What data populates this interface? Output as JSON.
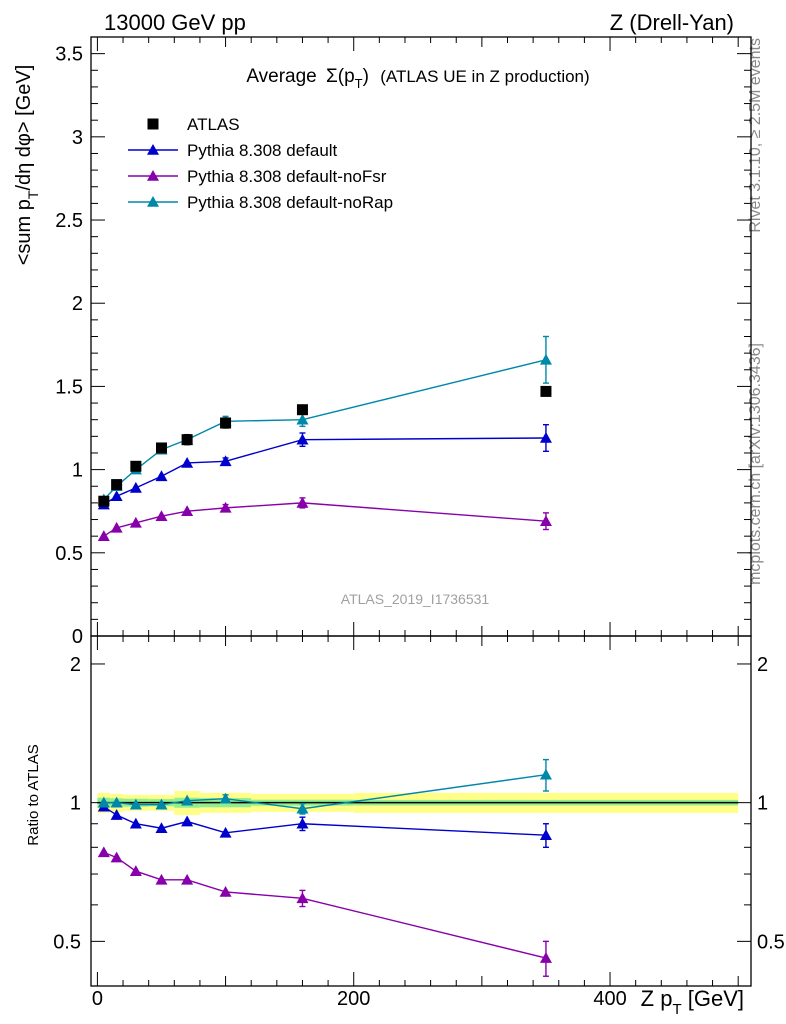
{
  "header": {
    "left": "13000 GeV pp",
    "right": "Z (Drell-Yan)"
  },
  "side_text": {
    "top": "Rivet 3.1.10, ≥ 2.5M events",
    "bottom": "mcplots.cern.ch [arXiv:1306.3436]"
  },
  "watermark": "ATLAS_2019_I1736531",
  "colors": {
    "atlas": "#000000",
    "default": "#0000cc",
    "noFsr": "#8800aa",
    "noRap": "#0088aa",
    "band_inner": "#90ee90",
    "band_outer": "#ffff88"
  },
  "chart_data": [
    {
      "type": "scatter",
      "panel": "main",
      "title_main": "Average",
      "title_sigma": "Σ(p",
      "title_sub": "T",
      "title_close": ")",
      "title_rest": "(ATLAS UE in Z production)",
      "ylabel": "<sum p_T/dη dφ> [GeV]",
      "ylabel_a": "<sum p",
      "ylabel_sub": "T",
      "ylabel_b": "/dη dφ> [GeV]",
      "xlim": [
        -5,
        510
      ],
      "ylim": [
        0,
        3.6
      ],
      "yticks": [
        0,
        0.5,
        1,
        1.5,
        2,
        2.5,
        3,
        3.5
      ],
      "ytick_labels": [
        "0",
        "0.5",
        "1",
        "1.5",
        "2",
        "2.5",
        "3",
        "3.5"
      ],
      "legend_position": "top-left",
      "x": [
        5,
        15,
        30,
        50,
        70,
        100,
        160,
        350
      ],
      "series": [
        {
          "name": "ATLAS",
          "key": "atlas",
          "marker": "square",
          "values": [
            0.81,
            0.91,
            1.02,
            1.13,
            1.18,
            1.28,
            1.36,
            1.47
          ],
          "err": [
            0.02,
            0.02,
            0.02,
            0.02,
            0.03,
            0.03,
            0.02,
            0.02
          ]
        },
        {
          "name": "Pythia 8.308 default",
          "key": "default",
          "marker": "triangle",
          "values": [
            0.79,
            0.84,
            0.89,
            0.96,
            1.04,
            1.05,
            1.18,
            1.19
          ],
          "err": [
            0.01,
            0.01,
            0.01,
            0.01,
            0.01,
            0.02,
            0.04,
            0.08
          ]
        },
        {
          "name": "Pythia 8.308 default-noFsr",
          "key": "noFsr",
          "marker": "triangle",
          "values": [
            0.6,
            0.65,
            0.68,
            0.72,
            0.75,
            0.77,
            0.8,
            0.69
          ],
          "err": [
            0.01,
            0.01,
            0.01,
            0.01,
            0.01,
            0.02,
            0.03,
            0.05
          ]
        },
        {
          "name": "Pythia 8.308 default-noRap",
          "key": "noRap",
          "marker": "triangle",
          "values": [
            0.82,
            0.9,
            1.0,
            1.12,
            1.18,
            1.29,
            1.3,
            1.66
          ],
          "err": [
            0.01,
            0.01,
            0.01,
            0.01,
            0.02,
            0.03,
            0.04,
            0.14
          ]
        }
      ]
    },
    {
      "type": "scatter",
      "panel": "ratio",
      "ylabel": "Ratio to ATLAS",
      "xlabel": "Z p_T [GeV]",
      "xlabel_a": "Z p",
      "xlabel_sub": "T",
      "xlabel_b": " [GeV]",
      "xlim": [
        -5,
        510
      ],
      "ylim": [
        0.4,
        2.3
      ],
      "log_scale_y": true,
      "yticks": [
        0.5,
        1,
        2
      ],
      "ytick_labels": [
        "0.5",
        "1",
        "2"
      ],
      "xticks": [
        0,
        200,
        400
      ],
      "xtick_labels": [
        "0",
        "200",
        "400"
      ],
      "x": [
        5,
        15,
        30,
        50,
        70,
        100,
        160,
        350
      ],
      "band": {
        "edges": [
          0,
          10,
          20,
          40,
          60,
          80,
          120,
          200,
          500
        ],
        "inner": [
          0.025,
          0.022,
          0.02,
          0.018,
          0.025,
          0.023,
          0.015,
          0.014
        ],
        "outer": [
          0.05,
          0.045,
          0.04,
          0.04,
          0.06,
          0.05,
          0.045,
          0.05
        ]
      },
      "series": [
        {
          "name": "Pythia 8.308 default",
          "key": "default",
          "values": [
            0.98,
            0.94,
            0.9,
            0.88,
            0.91,
            0.86,
            0.9,
            0.85
          ],
          "err": [
            0.01,
            0.01,
            0.01,
            0.01,
            0.01,
            0.015,
            0.03,
            0.05
          ]
        },
        {
          "name": "Pythia 8.308 default-noFsr",
          "key": "noFsr",
          "values": [
            0.78,
            0.76,
            0.71,
            0.68,
            0.68,
            0.64,
            0.62,
            0.46
          ],
          "err": [
            0.01,
            0.01,
            0.01,
            0.01,
            0.01,
            0.015,
            0.025,
            0.04
          ]
        },
        {
          "name": "Pythia 8.308 default-noRap",
          "key": "noRap",
          "values": [
            1.0,
            1.0,
            0.99,
            0.99,
            1.01,
            1.02,
            0.97,
            1.15
          ],
          "err": [
            0.01,
            0.01,
            0.01,
            0.01,
            0.015,
            0.02,
            0.025,
            0.09
          ]
        }
      ]
    }
  ]
}
